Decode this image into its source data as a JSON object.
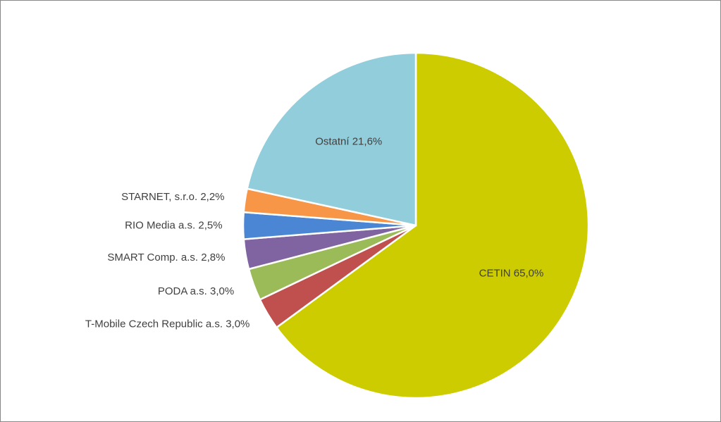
{
  "chart_data": {
    "type": "pie",
    "categories": [
      "CETIN",
      "T-Mobile Czech Republic a.s.",
      "PODA a.s.",
      "SMART Comp. a.s.",
      "RIO Media a.s.",
      "STARNET, s.r.o.",
      "Ostatní"
    ],
    "values": [
      65.0,
      3.0,
      3.0,
      2.8,
      2.5,
      2.2,
      21.6
    ],
    "value_labels": [
      "65,0%",
      "3,0%",
      "3,0%",
      "2,8%",
      "2,5%",
      "2,2%",
      "21,6%"
    ],
    "colors": [
      "#cccc00",
      "#c0504d",
      "#9bbb59",
      "#8064a2",
      "#4a86d4",
      "#f79646",
      "#92cddc"
    ]
  }
}
